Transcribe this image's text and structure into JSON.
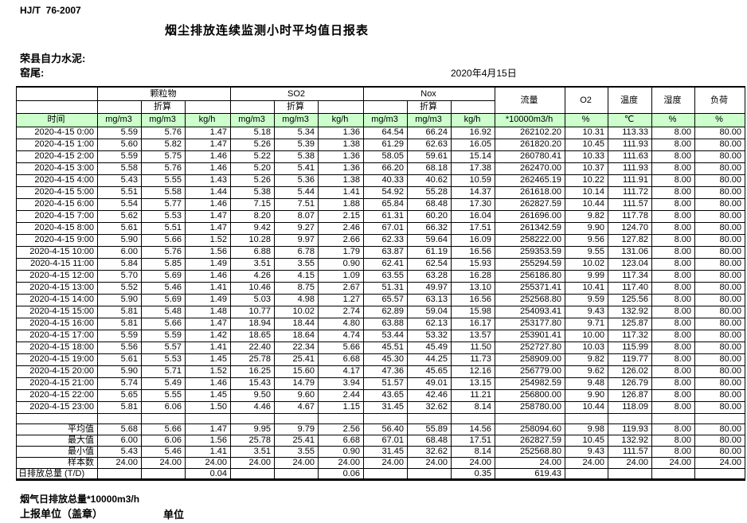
{
  "doc": {
    "standard": "HJ/T  76-2007",
    "title": "烟尘排放连续监测小时平均值日报表",
    "company": "荣县自力水泥:",
    "location": "窑尾:",
    "date": "2020年4月15日"
  },
  "colors": {
    "header_green": "#ccffcc",
    "border": "#000000"
  },
  "table": {
    "col_groups": {
      "pm": "颗粒物",
      "so2": "SO2",
      "nox": "Nox"
    },
    "conv_label": "折算",
    "single_headers": {
      "flow": "流量",
      "o2": "O2",
      "temp": "温度",
      "humidity": "湿度",
      "load": "负荷"
    },
    "units_row": [
      "时间",
      "mg/m3",
      "mg/m3",
      "kg/h",
      "mg/m3",
      "mg/m3",
      "kg/h",
      "mg/m3",
      "mg/m3",
      "kg/h",
      "*10000m3/h",
      "%",
      "℃",
      "%",
      "%"
    ],
    "rows": [
      [
        "2020-4-15 0:00",
        "5.59",
        "5.76",
        "1.47",
        "5.18",
        "5.34",
        "1.36",
        "64.54",
        "66.24",
        "16.92",
        "262102.20",
        "10.31",
        "113.33",
        "8.00",
        "80.00"
      ],
      [
        "2020-4-15 1:00",
        "5.60",
        "5.82",
        "1.47",
        "5.26",
        "5.39",
        "1.38",
        "61.29",
        "62.63",
        "16.05",
        "261820.20",
        "10.45",
        "111.93",
        "8.00",
        "80.00"
      ],
      [
        "2020-4-15 2:00",
        "5.59",
        "5.75",
        "1.46",
        "5.22",
        "5.38",
        "1.36",
        "58.05",
        "59.61",
        "15.14",
        "260780.41",
        "10.33",
        "111.63",
        "8.00",
        "80.00"
      ],
      [
        "2020-4-15 3:00",
        "5.58",
        "5.76",
        "1.46",
        "5.20",
        "5.41",
        "1.36",
        "66.20",
        "68.18",
        "17.38",
        "262470.00",
        "10.37",
        "111.93",
        "8.00",
        "80.00"
      ],
      [
        "2020-4-15 4:00",
        "5.43",
        "5.55",
        "1.43",
        "5.26",
        "5.36",
        "1.38",
        "40.33",
        "40.62",
        "10.59",
        "262465.19",
        "10.22",
        "111.91",
        "8.00",
        "80.00"
      ],
      [
        "2020-4-15 5:00",
        "5.51",
        "5.58",
        "1.44",
        "5.38",
        "5.44",
        "1.41",
        "54.92",
        "55.28",
        "14.37",
        "261618.00",
        "10.14",
        "111.72",
        "8.00",
        "80.00"
      ],
      [
        "2020-4-15 6:00",
        "5.54",
        "5.77",
        "1.46",
        "7.15",
        "7.51",
        "1.88",
        "65.84",
        "68.48",
        "17.30",
        "262827.59",
        "10.44",
        "111.57",
        "8.00",
        "80.00"
      ],
      [
        "2020-4-15 7:00",
        "5.62",
        "5.53",
        "1.47",
        "8.20",
        "8.07",
        "2.15",
        "61.31",
        "60.20",
        "16.04",
        "261696.00",
        "9.82",
        "117.78",
        "8.00",
        "80.00"
      ],
      [
        "2020-4-15 8:00",
        "5.61",
        "5.51",
        "1.47",
        "9.42",
        "9.27",
        "2.46",
        "67.01",
        "66.32",
        "17.51",
        "261342.59",
        "9.90",
        "124.70",
        "8.00",
        "80.00"
      ],
      [
        "2020-4-15 9:00",
        "5.90",
        "5.66",
        "1.52",
        "10.28",
        "9.97",
        "2.66",
        "62.33",
        "59.64",
        "16.09",
        "258222.00",
        "9.56",
        "127.82",
        "8.00",
        "80.00"
      ],
      [
        "2020-4-15 10:00",
        "6.00",
        "5.76",
        "1.56",
        "6.88",
        "6.78",
        "1.79",
        "63.87",
        "61.19",
        "16.56",
        "259353.59",
        "9.55",
        "131.06",
        "8.00",
        "80.00"
      ],
      [
        "2020-4-15 11:00",
        "5.84",
        "5.85",
        "1.49",
        "3.51",
        "3.55",
        "0.90",
        "62.41",
        "62.54",
        "15.93",
        "255294.59",
        "10.02",
        "123.04",
        "8.00",
        "80.00"
      ],
      [
        "2020-4-15 12:00",
        "5.70",
        "5.69",
        "1.46",
        "4.26",
        "4.15",
        "1.09",
        "63.55",
        "63.28",
        "16.28",
        "256186.80",
        "9.99",
        "117.34",
        "8.00",
        "80.00"
      ],
      [
        "2020-4-15 13:00",
        "5.52",
        "5.46",
        "1.41",
        "10.46",
        "8.75",
        "2.67",
        "51.31",
        "49.97",
        "13.10",
        "255371.41",
        "10.41",
        "117.40",
        "8.00",
        "80.00"
      ],
      [
        "2020-4-15 14:00",
        "5.90",
        "5.69",
        "1.49",
        "5.03",
        "4.98",
        "1.27",
        "65.57",
        "63.13",
        "16.56",
        "252568.80",
        "9.59",
        "125.56",
        "8.00",
        "80.00"
      ],
      [
        "2020-4-15 15:00",
        "5.81",
        "5.48",
        "1.48",
        "10.77",
        "10.02",
        "2.74",
        "62.89",
        "59.04",
        "15.98",
        "254093.41",
        "9.43",
        "132.92",
        "8.00",
        "80.00"
      ],
      [
        "2020-4-15 16:00",
        "5.81",
        "5.66",
        "1.47",
        "18.94",
        "18.44",
        "4.80",
        "63.88",
        "62.13",
        "16.17",
        "253177.80",
        "9.71",
        "125.87",
        "8.00",
        "80.00"
      ],
      [
        "2020-4-15 17:00",
        "5.59",
        "5.59",
        "1.42",
        "18.65",
        "18.64",
        "4.74",
        "53.44",
        "53.32",
        "13.57",
        "253901.41",
        "10.00",
        "117.32",
        "8.00",
        "80.00"
      ],
      [
        "2020-4-15 18:00",
        "5.56",
        "5.57",
        "1.41",
        "22.40",
        "22.34",
        "5.66",
        "45.51",
        "45.49",
        "11.50",
        "252727.80",
        "10.03",
        "115.99",
        "8.00",
        "80.00"
      ],
      [
        "2020-4-15 19:00",
        "5.61",
        "5.53",
        "1.45",
        "25.78",
        "25.41",
        "6.68",
        "45.30",
        "44.25",
        "11.73",
        "258909.00",
        "9.82",
        "119.77",
        "8.00",
        "80.00"
      ],
      [
        "2020-4-15 20:00",
        "5.90",
        "5.71",
        "1.52",
        "16.25",
        "15.60",
        "4.17",
        "47.36",
        "45.65",
        "12.16",
        "256779.00",
        "9.62",
        "126.02",
        "8.00",
        "80.00"
      ],
      [
        "2020-4-15 21:00",
        "5.74",
        "5.49",
        "1.46",
        "15.43",
        "14.79",
        "3.94",
        "51.57",
        "49.01",
        "13.15",
        "254982.59",
        "9.48",
        "126.79",
        "8.00",
        "80.00"
      ],
      [
        "2020-4-15 22:00",
        "5.65",
        "5.55",
        "1.45",
        "9.50",
        "9.60",
        "2.44",
        "43.65",
        "42.46",
        "11.21",
        "256800.00",
        "9.90",
        "126.87",
        "8.00",
        "80.00"
      ],
      [
        "2020-4-15 23:00",
        "5.81",
        "6.06",
        "1.50",
        "4.46",
        "4.67",
        "1.15",
        "31.45",
        "32.62",
        "8.14",
        "258780.00",
        "10.44",
        "118.09",
        "8.00",
        "80.00"
      ]
    ],
    "summary_rows": [
      [
        "平均值",
        "5.68",
        "5.66",
        "1.47",
        "9.95",
        "9.79",
        "2.56",
        "56.40",
        "55.89",
        "14.56",
        "258094.60",
        "9.98",
        "119.93",
        "8.00",
        "80.00"
      ],
      [
        "最大值",
        "6.00",
        "6.06",
        "1.56",
        "25.78",
        "25.41",
        "6.68",
        "67.01",
        "68.48",
        "17.51",
        "262827.59",
        "10.45",
        "132.92",
        "8.00",
        "80.00"
      ],
      [
        "最小值",
        "5.43",
        "5.46",
        "1.41",
        "3.51",
        "3.55",
        "0.90",
        "31.45",
        "32.62",
        "8.14",
        "252568.80",
        "9.43",
        "111.57",
        "8.00",
        "80.00"
      ],
      [
        "样本数",
        "24.00",
        "24.00",
        "24.00",
        "24.00",
        "24.00",
        "24.00",
        "24.00",
        "24.00",
        "24.00",
        "24.00",
        "24.00",
        "24.00",
        "24.00",
        "24.00"
      ],
      [
        "日排放总量 (T/D)",
        "",
        "",
        "0.04",
        "",
        "",
        "0.06",
        "",
        "",
        "0.35",
        "619.43",
        "",
        "",
        "",
        ""
      ]
    ]
  },
  "footer": {
    "flow_note": "烟气日排放总量*10000m3/h",
    "report_unit": "上报单位（盖章）",
    "unit": "单位"
  }
}
